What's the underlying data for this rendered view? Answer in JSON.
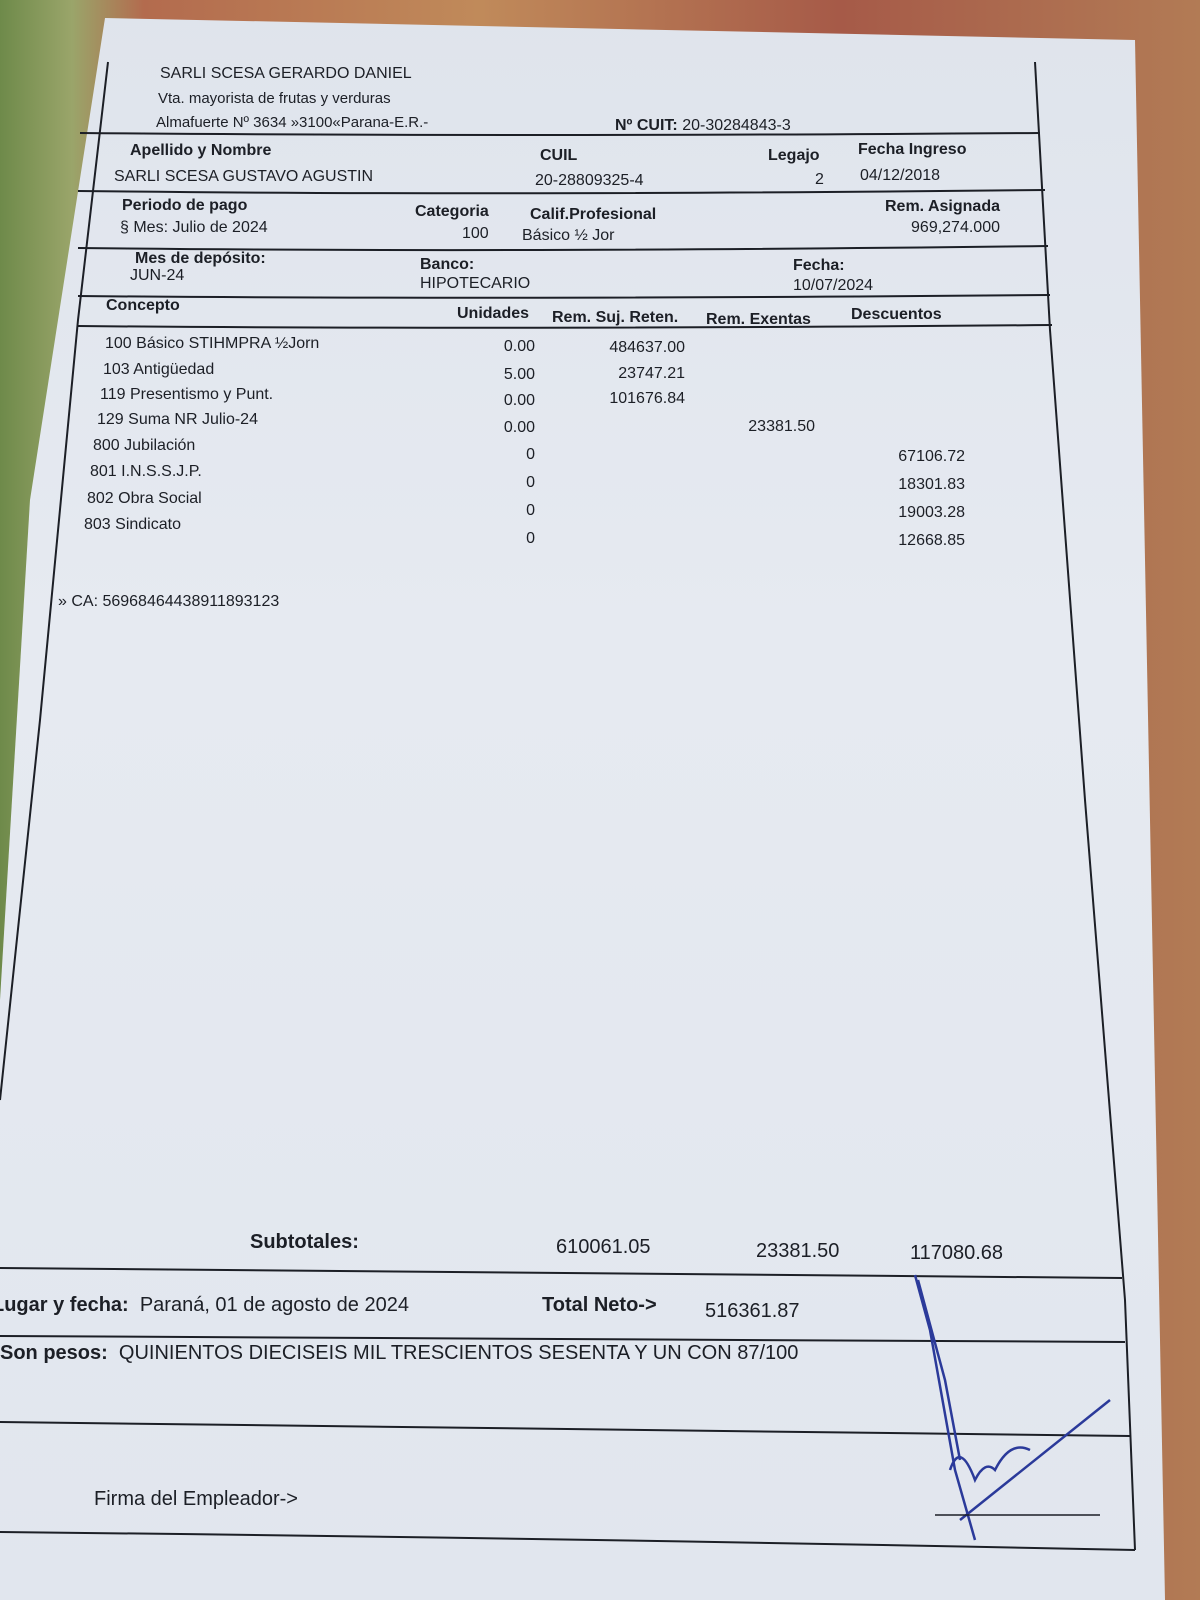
{
  "employer": {
    "name": "SARLI SCESA GERARDO DANIEL",
    "activity": "Vta. mayorista de frutas y verduras",
    "address": "Almafuerte Nº 3634 »3100«Parana-E.R.-",
    "cuit_label": "Nº CUIT:",
    "cuit": "20-30284843-3"
  },
  "employee": {
    "name_label": "Apellido y Nombre",
    "name": "SARLI SCESA GUSTAVO AGUSTIN",
    "cuil_label": "CUIL",
    "cuil": "20-28809325-4",
    "legajo_label": "Legajo",
    "legajo": "2",
    "ingreso_label": "Fecha Ingreso",
    "ingreso": "04/12/2018"
  },
  "period": {
    "label": "Periodo de pago",
    "value": "§ Mes: Julio de 2024",
    "categoria_label": "Categoria",
    "categoria": "100",
    "calif_label": "Calif.Profesional",
    "calif": "Básico ½ Jor",
    "rem_label": "Rem. Asignada",
    "rem": "969,274.000"
  },
  "deposit": {
    "mes_label": "Mes de depósito:",
    "mes": "JUN-24",
    "banco_label": "Banco:",
    "banco": "HIPOTECARIO",
    "fecha_label": "Fecha:",
    "fecha": "10/07/2024"
  },
  "table": {
    "headers": [
      "Concepto",
      "Unidades",
      "Rem. Suj. Reten.",
      "Rem. Exentas",
      "Descuentos"
    ],
    "rows": [
      {
        "concepto": "100 Básico STIHMPRA ½Jorn",
        "unidades": "0.00",
        "suj": "484637.00",
        "exentas": "",
        "desc": ""
      },
      {
        "concepto": "103 Antigüedad",
        "unidades": "5.00",
        "suj": "23747.21",
        "exentas": "",
        "desc": ""
      },
      {
        "concepto": "119 Presentismo y Punt.",
        "unidades": "0.00",
        "suj": "101676.84",
        "exentas": "",
        "desc": ""
      },
      {
        "concepto": "129 Suma NR Julio-24",
        "unidades": "0.00",
        "suj": "",
        "exentas": "23381.50",
        "desc": ""
      },
      {
        "concepto": "800 Jubilación",
        "unidades": "0",
        "suj": "",
        "exentas": "",
        "desc": "67106.72"
      },
      {
        "concepto": "801 I.N.S.S.J.P.",
        "unidades": "0",
        "suj": "",
        "exentas": "",
        "desc": "18301.83"
      },
      {
        "concepto": "802 Obra Social",
        "unidades": "0",
        "suj": "",
        "exentas": "",
        "desc": "19003.28"
      },
      {
        "concepto": "803 Sindicato",
        "unidades": "0",
        "suj": "",
        "exentas": "",
        "desc": "12668.85"
      }
    ]
  },
  "ca": "» CA: 5696846443891189312​3",
  "totals": {
    "subtotales_label": "Subtotales:",
    "suj": "610061.05",
    "exentas": "23381.50",
    "desc": "117080.68",
    "lugar_label": "Lugar y fecha:",
    "lugar": "Paraná, 01 de agosto de 2024",
    "neto_label": "Total Neto->",
    "neto": "516361.87",
    "pesos_label": "Son pesos:",
    "pesos": "QUINIENTOS DIECISEIS MIL TRESCIENTOS SESENTA Y UN CON 87/100",
    "firma_label": "Firma del Empleador->"
  },
  "colors": {
    "paper": "#e3e8ef",
    "ink": "#1c1f26",
    "signature": "#2b3a9a"
  }
}
